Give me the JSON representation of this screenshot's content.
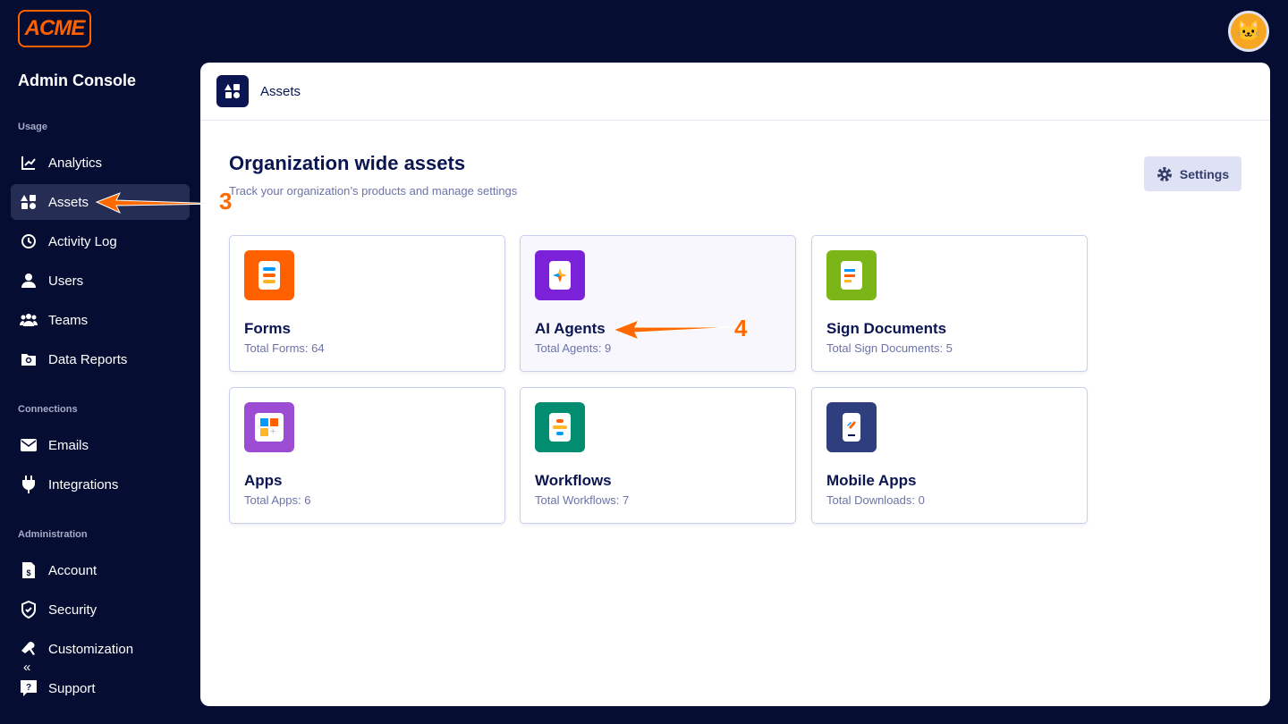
{
  "brand": {
    "logo": "ACME",
    "console_title": "Admin Console"
  },
  "sidebar": {
    "sections": [
      {
        "label": "Usage"
      },
      {
        "label": "Connections"
      },
      {
        "label": "Administration"
      }
    ],
    "items": [
      {
        "label": "Analytics",
        "icon": "chart-line-icon"
      },
      {
        "label": "Assets",
        "icon": "assets-grid-icon",
        "active": true
      },
      {
        "label": "Activity Log",
        "icon": "clock-history-icon"
      },
      {
        "label": "Users",
        "icon": "user-icon"
      },
      {
        "label": "Teams",
        "icon": "team-icon"
      },
      {
        "label": "Data Reports",
        "icon": "folder-search-icon"
      },
      {
        "label": "Emails",
        "icon": "envelope-icon"
      },
      {
        "label": "Integrations",
        "icon": "plug-icon"
      },
      {
        "label": "Account",
        "icon": "invoice-icon"
      },
      {
        "label": "Security",
        "icon": "shield-check-icon"
      },
      {
        "label": "Customization",
        "icon": "brush-icon"
      },
      {
        "label": "Support",
        "icon": "help-chat-icon"
      }
    ],
    "collapse": "«"
  },
  "header": {
    "title": "Assets"
  },
  "main": {
    "title": "Organization wide assets",
    "subtitle": "Track your organization’s products and manage settings",
    "settings_label": "Settings",
    "cards": [
      {
        "name": "Forms",
        "count": "Total Forms: 64",
        "color": "#ff6100"
      },
      {
        "name": "AI Agents",
        "count": "Total Agents: 9",
        "color": "#7b22d9"
      },
      {
        "name": "Sign Documents",
        "count": "Total Sign Documents: 5",
        "color": "#7cb518"
      },
      {
        "name": "Apps",
        "count": "Total Apps: 6",
        "color": "#9c4dd3"
      },
      {
        "name": "Workflows",
        "count": "Total Workflows: 7",
        "color": "#028c70"
      },
      {
        "name": "Mobile Apps",
        "count": "Total Downloads: 0",
        "color": "#2f3e7c"
      }
    ]
  },
  "annotations": [
    {
      "label": "3"
    },
    {
      "label": "4"
    }
  ]
}
